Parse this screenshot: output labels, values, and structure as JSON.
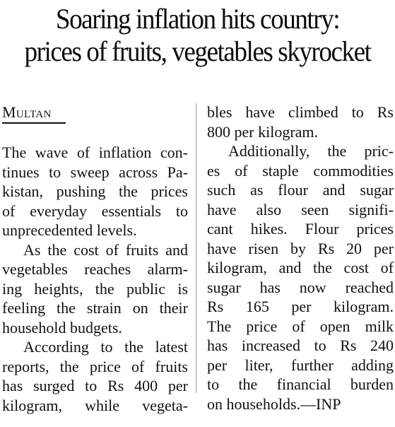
{
  "headline": {
    "line1": "Soaring inflation hits country:",
    "line2": "prices of fruits, vegetables skyrocket"
  },
  "dateline": "Multan",
  "left_column": {
    "lines": [
      "The wave of inflation con-",
      "tinues to sweep across Pa-",
      "kistan, pushing the prices",
      "of everyday essentials to",
      "unprecedented levels.",
      "As the cost of fruits and",
      "vegetables reaches alarm-",
      "ing heights, the public is",
      "feeling the strain on their",
      "household budgets.",
      "According to the latest",
      "reports, the price of fruits",
      "has surged to Rs 400 per",
      "kilogram, while vegeta-"
    ]
  },
  "right_column": {
    "lines": [
      "bles have climbed to Rs",
      "800 per kilogram.",
      "Additionally, the pric-",
      "es of staple commodities",
      "such as flour and sugar",
      "have also seen signifi-",
      "cant hikes. Flour prices",
      "have risen by Rs 20 per",
      "kilogram, and the cost of",
      "sugar has now reached",
      "Rs 165 per kilogram.",
      "The price of open milk",
      "has increased to Rs 240",
      "per liter, further adding",
      "to the financial burden",
      "on households.—INP"
    ]
  }
}
